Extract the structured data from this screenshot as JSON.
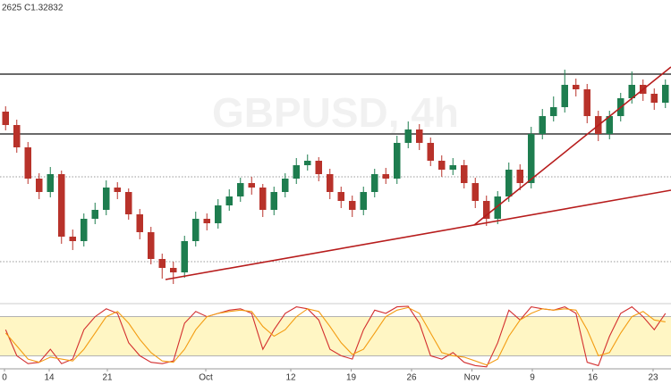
{
  "chart_data": {
    "type": "candlestick",
    "header": "2625 C1.32832",
    "watermark": "GBPUSD, 4h",
    "xlim": [
      -0.5,
      59.5
    ],
    "ylim": [
      1.3043,
      1.3383
    ],
    "xticks": [
      {
        "value": -0.1,
        "label": "0"
      },
      {
        "value": 3.9,
        "label": "14"
      },
      {
        "value": 9.1,
        "label": "21"
      },
      {
        "value": 17.9,
        "label": "Oct"
      },
      {
        "value": 25.5,
        "label": "12"
      },
      {
        "value": 30.9,
        "label": "19"
      },
      {
        "value": 36.3,
        "label": "26"
      },
      {
        "value": 41.7,
        "label": "Nov"
      },
      {
        "value": 47.1,
        "label": "9"
      },
      {
        "value": 52.5,
        "label": "16"
      },
      {
        "value": 57.9,
        "label": "23"
      }
    ],
    "open": [
      1.3258,
      1.3243,
      1.3218,
      1.3183,
      1.3168,
      1.3188,
      1.3118,
      1.3113,
      1.3138,
      1.3148,
      1.3173,
      1.3168,
      1.3143,
      1.3123,
      1.3093,
      1.3083,
      1.3078,
      1.3113,
      1.3138,
      1.3133,
      1.3153,
      1.3163,
      1.3178,
      1.3173,
      1.3148,
      1.3168,
      1.3183,
      1.3198,
      1.3203,
      1.3188,
      1.3168,
      1.3158,
      1.3148,
      1.3168,
      1.3188,
      1.3183,
      1.3223,
      1.3238,
      1.3223,
      1.3203,
      1.3193,
      1.3198,
      1.3178,
      1.3158,
      1.3138,
      1.3163,
      1.3193,
      1.3178,
      1.3233,
      1.3253,
      1.3263,
      1.3288,
      1.3283,
      1.3253,
      1.3233,
      1.3253,
      1.3273,
      1.3288,
      1.3278,
      1.3268
    ],
    "high": [
      1.3264,
      1.3249,
      1.3224,
      1.3189,
      1.3196,
      1.3192,
      1.3126,
      1.3144,
      1.3156,
      1.3181,
      1.3179,
      1.3172,
      1.3149,
      1.3129,
      1.3099,
      1.309,
      1.3119,
      1.3146,
      1.3144,
      1.316,
      1.3171,
      1.3184,
      1.3185,
      1.3177,
      1.3174,
      1.3189,
      1.3206,
      1.321,
      1.3207,
      1.3194,
      1.3174,
      1.3164,
      1.3174,
      1.3194,
      1.3195,
      1.3231,
      1.3247,
      1.3244,
      1.3229,
      1.3209,
      1.3206,
      1.3204,
      1.3184,
      1.3164,
      1.3169,
      1.3201,
      1.3199,
      1.3241,
      1.3261,
      1.3275,
      1.3305,
      1.3295,
      1.3289,
      1.3259,
      1.3259,
      1.3279,
      1.3303,
      1.3294,
      1.3284,
      1.3294
    ],
    "low": [
      1.3237,
      1.3212,
      1.3177,
      1.316,
      1.3162,
      1.311,
      1.3103,
      1.3107,
      1.3132,
      1.3142,
      1.316,
      1.3137,
      1.3115,
      1.3087,
      1.3071,
      1.3065,
      1.3072,
      1.3107,
      1.3125,
      1.3127,
      1.3147,
      1.3157,
      1.3165,
      1.314,
      1.3142,
      1.3162,
      1.3177,
      1.3192,
      1.318,
      1.316,
      1.315,
      1.314,
      1.3142,
      1.3162,
      1.3177,
      1.3177,
      1.3217,
      1.3215,
      1.3197,
      1.3185,
      1.3187,
      1.3172,
      1.315,
      1.313,
      1.3132,
      1.3157,
      1.317,
      1.3172,
      1.3227,
      1.3247,
      1.3257,
      1.3275,
      1.3245,
      1.3225,
      1.3227,
      1.3247,
      1.3267,
      1.327,
      1.326,
      1.3262
    ],
    "close": [
      1.3243,
      1.3218,
      1.3183,
      1.3168,
      1.3188,
      1.3118,
      1.3113,
      1.3138,
      1.3148,
      1.3173,
      1.3168,
      1.3143,
      1.3123,
      1.3093,
      1.3083,
      1.3078,
      1.3113,
      1.3138,
      1.3133,
      1.3153,
      1.3163,
      1.3178,
      1.3173,
      1.3148,
      1.3168,
      1.3183,
      1.3198,
      1.3203,
      1.3188,
      1.3168,
      1.3158,
      1.3148,
      1.3168,
      1.3188,
      1.3183,
      1.3223,
      1.3238,
      1.3223,
      1.3203,
      1.3193,
      1.3198,
      1.3178,
      1.3158,
      1.3138,
      1.3163,
      1.3193,
      1.3178,
      1.3233,
      1.3253,
      1.3263,
      1.3288,
      1.3283,
      1.3253,
      1.3233,
      1.3253,
      1.3273,
      1.3288,
      1.3278,
      1.3268,
      1.3288
    ],
    "up_color": "#1e7d4f",
    "down_color": "#b8322a",
    "levels": [
      {
        "value": 1.33,
        "style": "solid"
      },
      {
        "value": 1.3233,
        "style": "solid"
      },
      {
        "value": 1.3185,
        "style": "dotted"
      },
      {
        "value": 1.309,
        "style": "dotted"
      }
    ],
    "trendlines": [
      {
        "x": [
          14.3,
          59.5
        ],
        "y": [
          1.307,
          1.317
        ],
        "color": "#b71c1c"
      },
      {
        "x": [
          41.9,
          59.5
        ],
        "y": [
          1.3131,
          1.3308
        ],
        "color": "#b71c1c"
      }
    ],
    "stochastic": {
      "ylim": [
        0,
        100
      ],
      "bands": [
        20,
        80
      ],
      "band_color": "#fff6c4",
      "series": [
        {
          "color": "#d32f2f",
          "values": [
            60,
            20,
            8,
            10,
            30,
            8,
            15,
            60,
            80,
            92,
            85,
            40,
            20,
            10,
            8,
            12,
            70,
            88,
            80,
            85,
            90,
            92,
            85,
            30,
            60,
            85,
            95,
            92,
            75,
            30,
            20,
            15,
            60,
            90,
            85,
            95,
            96,
            70,
            20,
            15,
            25,
            10,
            5,
            3,
            40,
            90,
            75,
            95,
            92,
            90,
            95,
            85,
            10,
            5,
            50,
            85,
            95,
            80,
            60,
            85
          ]
        },
        {
          "color": "#f39c12",
          "values": [
            55,
            35,
            15,
            10,
            18,
            15,
            12,
            30,
            55,
            80,
            88,
            70,
            45,
            25,
            12,
            10,
            30,
            60,
            80,
            85,
            88,
            90,
            88,
            65,
            50,
            60,
            80,
            92,
            88,
            65,
            40,
            22,
            30,
            55,
            80,
            90,
            94,
            85,
            55,
            25,
            20,
            18,
            12,
            6,
            15,
            50,
            75,
            85,
            92,
            90,
            92,
            90,
            60,
            20,
            25,
            55,
            80,
            88,
            75,
            72
          ]
        }
      ]
    }
  }
}
